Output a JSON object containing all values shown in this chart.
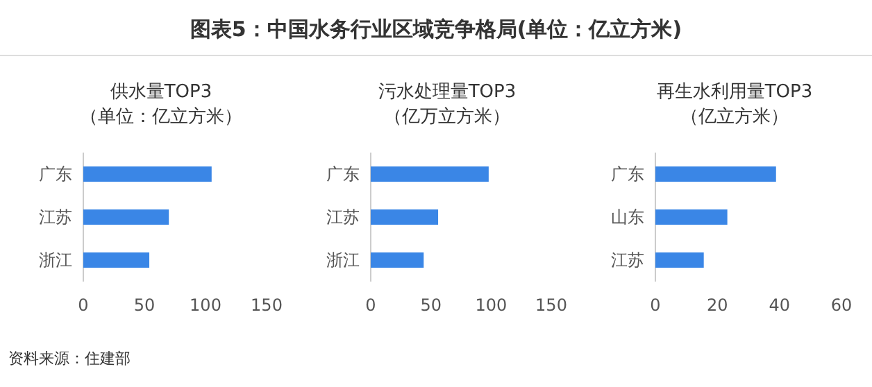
{
  "chart_data": [
    {
      "type": "other",
      "title": "图表5：中国水务行业区域竞争格局(单位：亿立方米)",
      "annotations": [
        "资料来源：住建部"
      ]
    },
    {
      "type": "bar",
      "orientation": "horizontal",
      "title": "供水量TOP3\n（单位：亿立方米）",
      "categories": [
        "广东",
        "江苏",
        "浙江"
      ],
      "values": [
        105,
        70,
        54
      ],
      "color": "#3a86e6",
      "xlim": [
        0,
        150
      ],
      "xticks": [
        0,
        50,
        100,
        150
      ],
      "grid": false
    },
    {
      "type": "bar",
      "orientation": "horizontal",
      "title": "污水处理量TOP3\n（亿万立方米）",
      "categories": [
        "广东",
        "江苏",
        "浙江"
      ],
      "values": [
        98,
        56,
        44
      ],
      "color": "#3a86e6",
      "xlim": [
        0,
        150
      ],
      "xticks": [
        0,
        50,
        100,
        150
      ],
      "grid": false
    },
    {
      "type": "bar",
      "orientation": "horizontal",
      "title": "再生水利用量TOP3\n（亿立方米）",
      "categories": [
        "广东",
        "山东",
        "江苏"
      ],
      "values": [
        38.9,
        23.2,
        15.6
      ],
      "color": "#3a86e6",
      "xlim": [
        0,
        60
      ],
      "xticks": [
        0,
        20,
        40,
        60
      ],
      "grid": false
    }
  ]
}
